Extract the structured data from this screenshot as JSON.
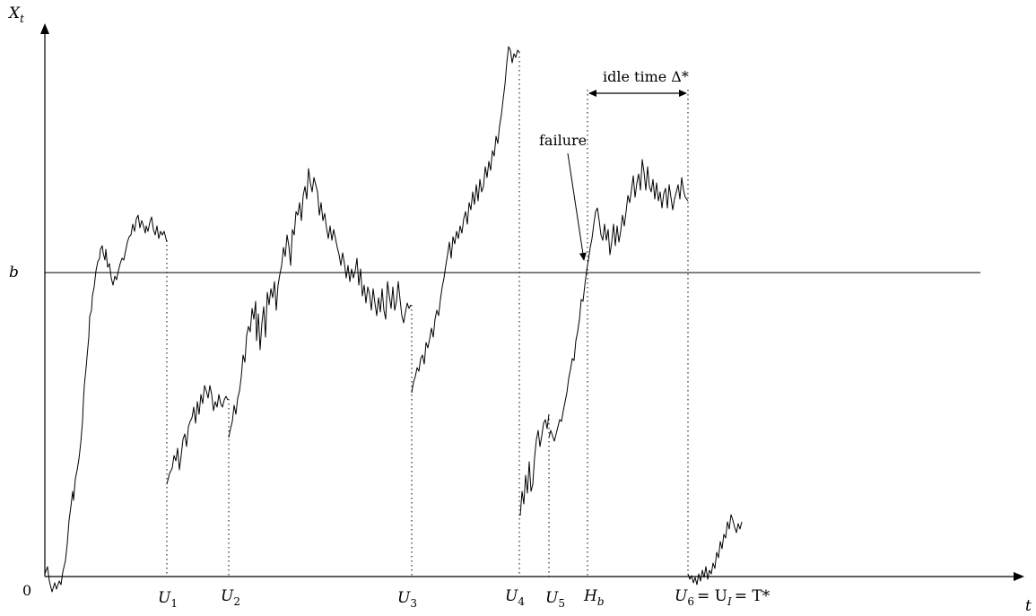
{
  "labels": {
    "y_axis": "X",
    "y_axis_sub": "t",
    "x_axis": "t",
    "zero": "0",
    "b": "b",
    "idle": "idle time Δ*",
    "failure": "failure",
    "u1": "U",
    "u1_sub": "1",
    "u2": "U",
    "u2_sub": "2",
    "u3": "U",
    "u3_sub": "3",
    "u4": "U",
    "u4_sub": "4",
    "u5": "U",
    "u5_sub": "5",
    "hb": "H",
    "hb_sub": "b",
    "u6": "U",
    "u6_sub": "6",
    "u6_eq": "= U",
    "u6_i": "I",
    "u6_t": "= T*"
  },
  "style": {
    "line_color": "#000000",
    "background": "#ffffff"
  }
}
